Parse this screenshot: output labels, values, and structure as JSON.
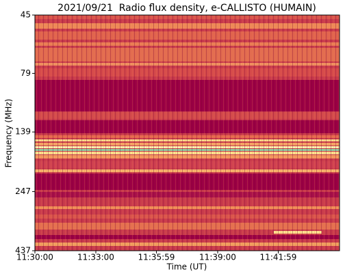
{
  "chart_data": {
    "type": "spectrogram",
    "title": "2021/09/21  Radio flux density, e-CALLISTO (HUMAIN)",
    "x_label": "Time (UT)",
    "y_label": "Frequency (MHz)",
    "xlim": [
      41400,
      42300
    ],
    "xticks": [
      {
        "value": 41400,
        "label": "11:30:00"
      },
      {
        "value": 41580,
        "label": "11:33:00"
      },
      {
        "value": 41759,
        "label": "11:35:59"
      },
      {
        "value": 41940,
        "label": "11:39:00"
      },
      {
        "value": 42119,
        "label": "11:41:59"
      }
    ],
    "ylim": [
      45,
      437
    ],
    "yticks": [
      45,
      79,
      139,
      247,
      437
    ],
    "y_scale": "log",
    "y_inverted": true
  }
}
